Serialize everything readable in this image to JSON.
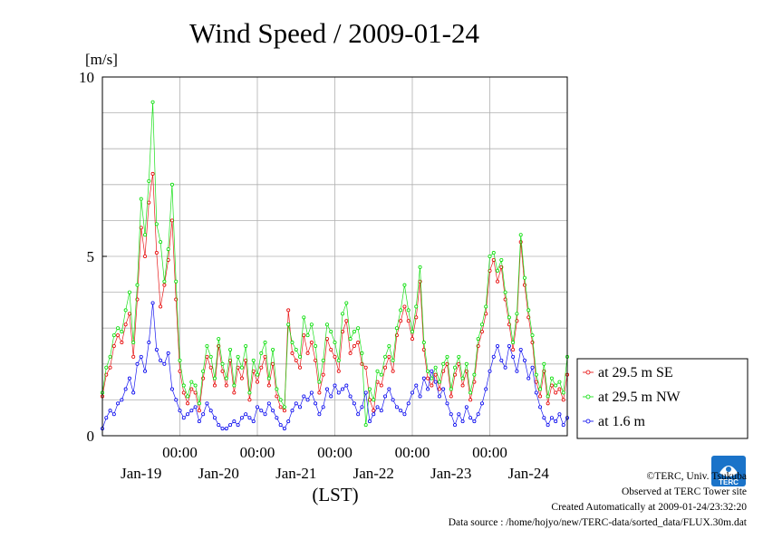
{
  "chart_data": {
    "type": "line",
    "title": "Wind Speed / 2009-01-24",
    "ylabel": "[m/s]",
    "xlabel": "(LST)",
    "ylim": [
      0,
      10
    ],
    "yticks": [
      "0",
      "5",
      "10"
    ],
    "xlim": [
      0,
      6
    ],
    "x_unit": "days from 2009-01-18 12:00 LST",
    "x_tick_times": [
      "00:00",
      "00:00",
      "00:00",
      "00:00",
      "00:00"
    ],
    "x_tick_positions": [
      1,
      2,
      3,
      4,
      5
    ],
    "x_date_labels": [
      "Jan-19",
      "Jan-20",
      "Jan-21",
      "Jan-22",
      "Jan-23",
      "Jan-24"
    ],
    "x_date_positions": [
      0.5,
      1.5,
      2.5,
      3.5,
      4.5,
      5.5
    ],
    "grid": true,
    "legend_position": "right",
    "series": [
      {
        "name": "at 29.5 m SE",
        "color": "#e60000",
        "x": [
          0.0,
          0.05,
          0.1,
          0.15,
          0.2,
          0.25,
          0.3,
          0.35,
          0.4,
          0.45,
          0.5,
          0.55,
          0.6,
          0.65,
          0.7,
          0.75,
          0.8,
          0.85,
          0.9,
          0.95,
          1.0,
          1.05,
          1.1,
          1.15,
          1.2,
          1.25,
          1.3,
          1.35,
          1.4,
          1.45,
          1.5,
          1.55,
          1.6,
          1.65,
          1.7,
          1.75,
          1.8,
          1.85,
          1.9,
          1.95,
          2.0,
          2.05,
          2.1,
          2.15,
          2.2,
          2.25,
          2.3,
          2.35,
          2.4,
          2.45,
          2.5,
          2.55,
          2.6,
          2.65,
          2.7,
          2.75,
          2.8,
          2.85,
          2.9,
          2.95,
          3.0,
          3.05,
          3.1,
          3.15,
          3.2,
          3.25,
          3.3,
          3.35,
          3.4,
          3.45,
          3.5,
          3.55,
          3.6,
          3.65,
          3.7,
          3.75,
          3.8,
          3.85,
          3.9,
          3.95,
          4.0,
          4.05,
          4.1,
          4.15,
          4.2,
          4.25,
          4.3,
          4.35,
          4.4,
          4.45,
          4.5,
          4.55,
          4.6,
          4.65,
          4.7,
          4.75,
          4.8,
          4.85,
          4.9,
          4.95,
          5.0,
          5.05,
          5.1,
          5.15,
          5.2,
          5.25,
          5.3,
          5.35,
          5.4,
          5.45,
          5.5,
          5.55,
          5.6,
          5.65,
          5.7,
          5.75,
          5.8,
          5.85,
          5.9,
          5.95,
          6.0
        ],
        "values": [
          1.1,
          1.7,
          1.9,
          2.5,
          2.8,
          2.6,
          3.1,
          3.4,
          2.2,
          3.8,
          5.8,
          5.0,
          6.5,
          7.3,
          5.1,
          3.6,
          4.2,
          4.9,
          6.0,
          3.8,
          1.8,
          1.2,
          0.9,
          1.3,
          1.2,
          0.7,
          1.6,
          2.2,
          1.9,
          1.4,
          2.5,
          1.8,
          1.4,
          2.1,
          1.2,
          1.9,
          1.6,
          2.1,
          1.0,
          1.8,
          1.5,
          1.9,
          2.2,
          1.4,
          2.0,
          1.1,
          0.8,
          0.7,
          3.5,
          2.3,
          2.1,
          1.9,
          2.8,
          2.3,
          2.6,
          2.1,
          1.2,
          1.7,
          2.7,
          2.4,
          2.2,
          1.8,
          2.9,
          3.2,
          2.3,
          2.5,
          2.6,
          2.0,
          1.9,
          1.0,
          0.7,
          1.5,
          1.4,
          1.9,
          2.2,
          1.8,
          2.8,
          3.2,
          3.6,
          3.2,
          2.7,
          3.3,
          4.3,
          2.4,
          1.6,
          1.4,
          1.7,
          1.3,
          1.8,
          2.0,
          1.1,
          1.7,
          2.0,
          1.4,
          1.8,
          1.0,
          1.5,
          2.5,
          2.9,
          3.4,
          4.6,
          4.9,
          4.3,
          4.7,
          3.8,
          3.1,
          2.4,
          3.2,
          5.4,
          4.2,
          3.3,
          2.6,
          1.5,
          1.1,
          1.8,
          0.9,
          1.4,
          1.2,
          1.3,
          1.0,
          1.7
        ]
      },
      {
        "name": "at 29.5 m NW",
        "color": "#00dd00",
        "x": [
          0.0,
          0.05,
          0.1,
          0.15,
          0.2,
          0.25,
          0.3,
          0.35,
          0.4,
          0.45,
          0.5,
          0.55,
          0.6,
          0.65,
          0.7,
          0.75,
          0.8,
          0.85,
          0.9,
          0.95,
          1.0,
          1.05,
          1.1,
          1.15,
          1.2,
          1.25,
          1.3,
          1.35,
          1.4,
          1.45,
          1.5,
          1.55,
          1.6,
          1.65,
          1.7,
          1.75,
          1.8,
          1.85,
          1.9,
          1.95,
          2.0,
          2.05,
          2.1,
          2.15,
          2.2,
          2.25,
          2.3,
          2.35,
          2.4,
          2.45,
          2.5,
          2.55,
          2.6,
          2.65,
          2.7,
          2.75,
          2.8,
          2.85,
          2.9,
          2.95,
          3.0,
          3.05,
          3.1,
          3.15,
          3.2,
          3.25,
          3.3,
          3.35,
          3.4,
          3.45,
          3.5,
          3.55,
          3.6,
          3.65,
          3.7,
          3.75,
          3.8,
          3.85,
          3.9,
          3.95,
          4.0,
          4.05,
          4.1,
          4.15,
          4.2,
          4.25,
          4.3,
          4.35,
          4.4,
          4.45,
          4.5,
          4.55,
          4.6,
          4.65,
          4.7,
          4.75,
          4.8,
          4.85,
          4.9,
          4.95,
          5.0,
          5.05,
          5.1,
          5.15,
          5.2,
          5.25,
          5.3,
          5.35,
          5.4,
          5.45,
          5.5,
          5.55,
          5.6,
          5.65,
          5.7,
          5.75,
          5.8,
          5.85,
          5.9,
          5.95,
          6.0
        ],
        "values": [
          1.2,
          1.9,
          2.2,
          2.8,
          3.0,
          2.9,
          3.5,
          4.0,
          2.6,
          4.2,
          6.6,
          5.6,
          7.1,
          9.3,
          5.9,
          5.4,
          4.3,
          5.2,
          7.0,
          4.3,
          2.1,
          1.4,
          1.1,
          1.5,
          1.4,
          0.9,
          1.8,
          2.5,
          2.2,
          1.6,
          2.7,
          2.0,
          1.6,
          2.4,
          1.4,
          2.2,
          1.9,
          2.5,
          1.2,
          2.1,
          1.7,
          2.3,
          2.6,
          1.6,
          2.4,
          1.3,
          1.0,
          0.8,
          3.1,
          2.6,
          2.4,
          2.2,
          3.3,
          2.8,
          3.1,
          2.5,
          1.5,
          2.1,
          3.1,
          2.9,
          2.6,
          2.1,
          3.4,
          3.7,
          2.7,
          2.9,
          3.0,
          2.3,
          0.3,
          1.3,
          1.0,
          1.8,
          1.7,
          2.2,
          2.5,
          2.1,
          3.0,
          3.5,
          4.2,
          3.5,
          2.9,
          3.6,
          4.7,
          2.6,
          1.8,
          1.6,
          1.9,
          1.5,
          2.0,
          2.2,
          1.3,
          1.9,
          2.2,
          1.6,
          2.0,
          1.2,
          1.7,
          2.7,
          3.1,
          3.6,
          5.0,
          5.1,
          4.6,
          4.9,
          4.0,
          3.3,
          2.6,
          3.4,
          5.6,
          4.4,
          3.5,
          2.8,
          1.7,
          1.3,
          2.0,
          1.1,
          1.6,
          1.4,
          1.5,
          1.2,
          2.2
        ]
      },
      {
        "name": "at 1.6 m",
        "color": "#0000ee",
        "x": [
          0.0,
          0.05,
          0.1,
          0.15,
          0.2,
          0.25,
          0.3,
          0.35,
          0.4,
          0.45,
          0.5,
          0.55,
          0.6,
          0.65,
          0.7,
          0.75,
          0.8,
          0.85,
          0.9,
          0.95,
          1.0,
          1.05,
          1.1,
          1.15,
          1.2,
          1.25,
          1.3,
          1.35,
          1.4,
          1.45,
          1.5,
          1.55,
          1.6,
          1.65,
          1.7,
          1.75,
          1.8,
          1.85,
          1.9,
          1.95,
          2.0,
          2.05,
          2.1,
          2.15,
          2.2,
          2.25,
          2.3,
          2.35,
          2.4,
          2.45,
          2.5,
          2.55,
          2.6,
          2.65,
          2.7,
          2.75,
          2.8,
          2.85,
          2.9,
          2.95,
          3.0,
          3.05,
          3.1,
          3.15,
          3.2,
          3.25,
          3.3,
          3.35,
          3.4,
          3.45,
          3.5,
          3.55,
          3.6,
          3.65,
          3.7,
          3.75,
          3.8,
          3.85,
          3.9,
          3.95,
          4.0,
          4.05,
          4.1,
          4.15,
          4.2,
          4.25,
          4.3,
          4.35,
          4.4,
          4.45,
          4.5,
          4.55,
          4.6,
          4.65,
          4.7,
          4.75,
          4.8,
          4.85,
          4.9,
          4.95,
          5.0,
          5.05,
          5.1,
          5.15,
          5.2,
          5.25,
          5.3,
          5.35,
          5.4,
          5.45,
          5.5,
          5.55,
          5.6,
          5.65,
          5.7,
          5.75,
          5.8,
          5.85,
          5.9,
          5.95,
          6.0
        ],
        "values": [
          0.2,
          0.5,
          0.7,
          0.6,
          0.9,
          1.0,
          1.3,
          1.6,
          1.2,
          2.0,
          2.2,
          1.8,
          2.6,
          3.7,
          2.4,
          2.1,
          2.0,
          2.3,
          1.3,
          1.0,
          0.7,
          0.5,
          0.6,
          0.7,
          0.8,
          0.4,
          0.6,
          0.9,
          0.7,
          0.5,
          0.3,
          0.2,
          0.2,
          0.3,
          0.4,
          0.3,
          0.5,
          0.6,
          0.5,
          0.4,
          0.8,
          0.7,
          0.6,
          0.9,
          0.7,
          0.5,
          0.3,
          0.2,
          0.4,
          0.7,
          0.9,
          0.8,
          1.1,
          1.0,
          1.2,
          0.9,
          0.6,
          0.8,
          1.3,
          1.1,
          1.4,
          1.2,
          1.3,
          1.4,
          1.1,
          0.9,
          0.6,
          0.8,
          1.2,
          0.4,
          0.6,
          0.8,
          0.7,
          1.1,
          1.3,
          1.0,
          0.8,
          0.7,
          0.6,
          0.9,
          1.2,
          1.4,
          1.1,
          1.6,
          1.3,
          1.8,
          1.5,
          1.1,
          1.3,
          0.9,
          0.6,
          0.3,
          0.6,
          0.4,
          0.8,
          0.5,
          0.4,
          0.6,
          0.9,
          1.3,
          1.8,
          2.2,
          2.5,
          2.1,
          1.9,
          2.5,
          2.2,
          1.8,
          2.4,
          2.1,
          1.6,
          1.9,
          1.2,
          0.8,
          0.5,
          0.3,
          0.5,
          0.4,
          0.6,
          0.3,
          0.5
        ]
      }
    ]
  },
  "footer": {
    "copyright": "©TERC, Univ. Tsukuba",
    "observed": "Observed at TERC Tower site",
    "created": "Created Automatically at 2009-01-24/23:32:20",
    "source": "Data source : /home/hojyo/new/TERC-data/sorted_data/FLUX.30m.dat"
  },
  "logo": {
    "text": "TERC",
    "color": "#1a73c9"
  }
}
